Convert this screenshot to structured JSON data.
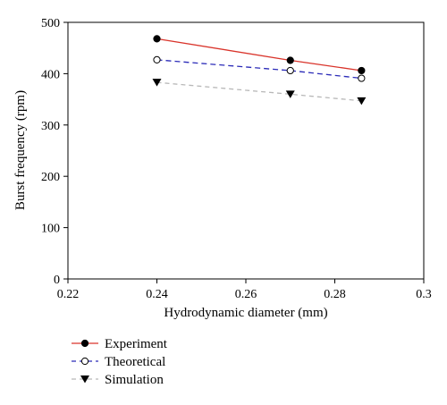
{
  "chart_data": {
    "type": "line",
    "xlabel": "Hydrodynamic diameter (mm)",
    "ylabel": "Burst frequency (rpm)",
    "xlim": [
      0.22,
      0.3
    ],
    "ylim": [
      0,
      500
    ],
    "x_ticks": [
      "0.22",
      "0.24",
      "0.26",
      "0.28",
      "0.3"
    ],
    "y_ticks": [
      "0",
      "100",
      "200",
      "300",
      "400",
      "500"
    ],
    "x_tick_values": [
      0.22,
      0.24,
      0.26,
      0.28,
      0.3
    ],
    "y_tick_values": [
      0,
      100,
      200,
      300,
      400,
      500
    ],
    "grid": false,
    "legend_position": "bottom-left",
    "series": [
      {
        "name": "Experiment",
        "x": [
          0.24,
          0.27,
          0.286
        ],
        "y": [
          468,
          426,
          406
        ],
        "color": "#d9342b",
        "line_style": "solid",
        "marker": "filled-circle"
      },
      {
        "name": "Theoretical",
        "x": [
          0.24,
          0.27,
          0.286
        ],
        "y": [
          427,
          406,
          391
        ],
        "color": "#2b2bb8",
        "line_style": "dashed",
        "marker": "open-circle"
      },
      {
        "name": "Simulation",
        "x": [
          0.24,
          0.27,
          0.286
        ],
        "y": [
          383,
          360,
          347
        ],
        "color": "#b8b8b8",
        "line_style": "dashed",
        "marker": "filled-triangle-down"
      }
    ]
  }
}
